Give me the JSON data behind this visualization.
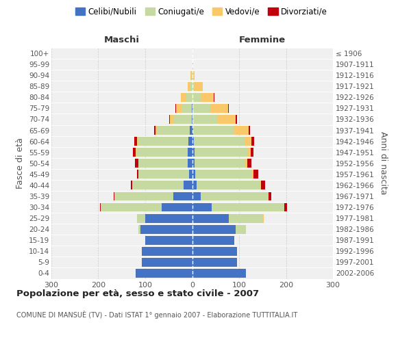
{
  "age_groups": [
    "0-4",
    "5-9",
    "10-14",
    "15-19",
    "20-24",
    "25-29",
    "30-34",
    "35-39",
    "40-44",
    "45-49",
    "50-54",
    "55-59",
    "60-64",
    "65-69",
    "70-74",
    "75-79",
    "80-84",
    "85-89",
    "90-94",
    "95-99",
    "100+"
  ],
  "birth_years": [
    "2002-2006",
    "1997-2001",
    "1992-1996",
    "1987-1991",
    "1982-1986",
    "1977-1981",
    "1972-1976",
    "1967-1971",
    "1962-1966",
    "1957-1961",
    "1952-1956",
    "1947-1951",
    "1942-1946",
    "1937-1941",
    "1932-1936",
    "1927-1931",
    "1922-1926",
    "1917-1921",
    "1912-1916",
    "1907-1911",
    "≤ 1906"
  ],
  "colors": {
    "celibi": "#4472C4",
    "coniugati": "#C5D9A0",
    "vedovi": "#F9C86A",
    "divorziati": "#C0000B"
  },
  "maschi": {
    "celibi": [
      120,
      108,
      108,
      100,
      110,
      100,
      65,
      40,
      18,
      6,
      9,
      9,
      8,
      5,
      1,
      1,
      0,
      0,
      0,
      0,
      0
    ],
    "coniugati": [
      0,
      0,
      0,
      0,
      5,
      18,
      130,
      125,
      110,
      108,
      105,
      110,
      108,
      70,
      38,
      22,
      12,
      5,
      2,
      0,
      0
    ],
    "vedovi": [
      0,
      0,
      0,
      0,
      0,
      0,
      0,
      0,
      0,
      0,
      0,
      1,
      2,
      3,
      8,
      12,
      12,
      5,
      2,
      0,
      0
    ],
    "divorziati": [
      0,
      0,
      0,
      0,
      0,
      0,
      2,
      2,
      2,
      3,
      8,
      7,
      5,
      3,
      2,
      1,
      0,
      0,
      0,
      0,
      0
    ]
  },
  "femmine": {
    "nubili": [
      115,
      96,
      95,
      90,
      92,
      78,
      42,
      18,
      10,
      6,
      5,
      5,
      3,
      2,
      0,
      0,
      0,
      0,
      0,
      0,
      0
    ],
    "coniugate": [
      0,
      0,
      0,
      0,
      22,
      72,
      155,
      145,
      135,
      122,
      108,
      112,
      108,
      88,
      55,
      38,
      18,
      5,
      2,
      1,
      0
    ],
    "vedove": [
      0,
      0,
      0,
      0,
      0,
      3,
      0,
      0,
      2,
      3,
      5,
      8,
      16,
      30,
      38,
      38,
      28,
      18,
      3,
      1,
      0
    ],
    "divorziate": [
      0,
      0,
      0,
      0,
      0,
      0,
      5,
      5,
      8,
      10,
      8,
      5,
      5,
      3,
      2,
      2,
      1,
      0,
      0,
      0,
      0
    ]
  },
  "xlim": 300,
  "title": "Popolazione per età, sesso e stato civile - 2007",
  "subtitle": "COMUNE DI MANSUÈ (TV) - Dati ISTAT 1° gennaio 2007 - Elaborazione TUTTITALIA.IT",
  "ylabel": "Fasce di età",
  "ylabel_right": "Anni di nascita",
  "xlabel_left": "Maschi",
  "xlabel_right": "Femmine",
  "legend_labels": [
    "Celibi/Nubili",
    "Coniugati/e",
    "Vedovi/e",
    "Divorziati/e"
  ],
  "bg_color": "#F0F0F0",
  "grid_color": "#CCCCCC"
}
